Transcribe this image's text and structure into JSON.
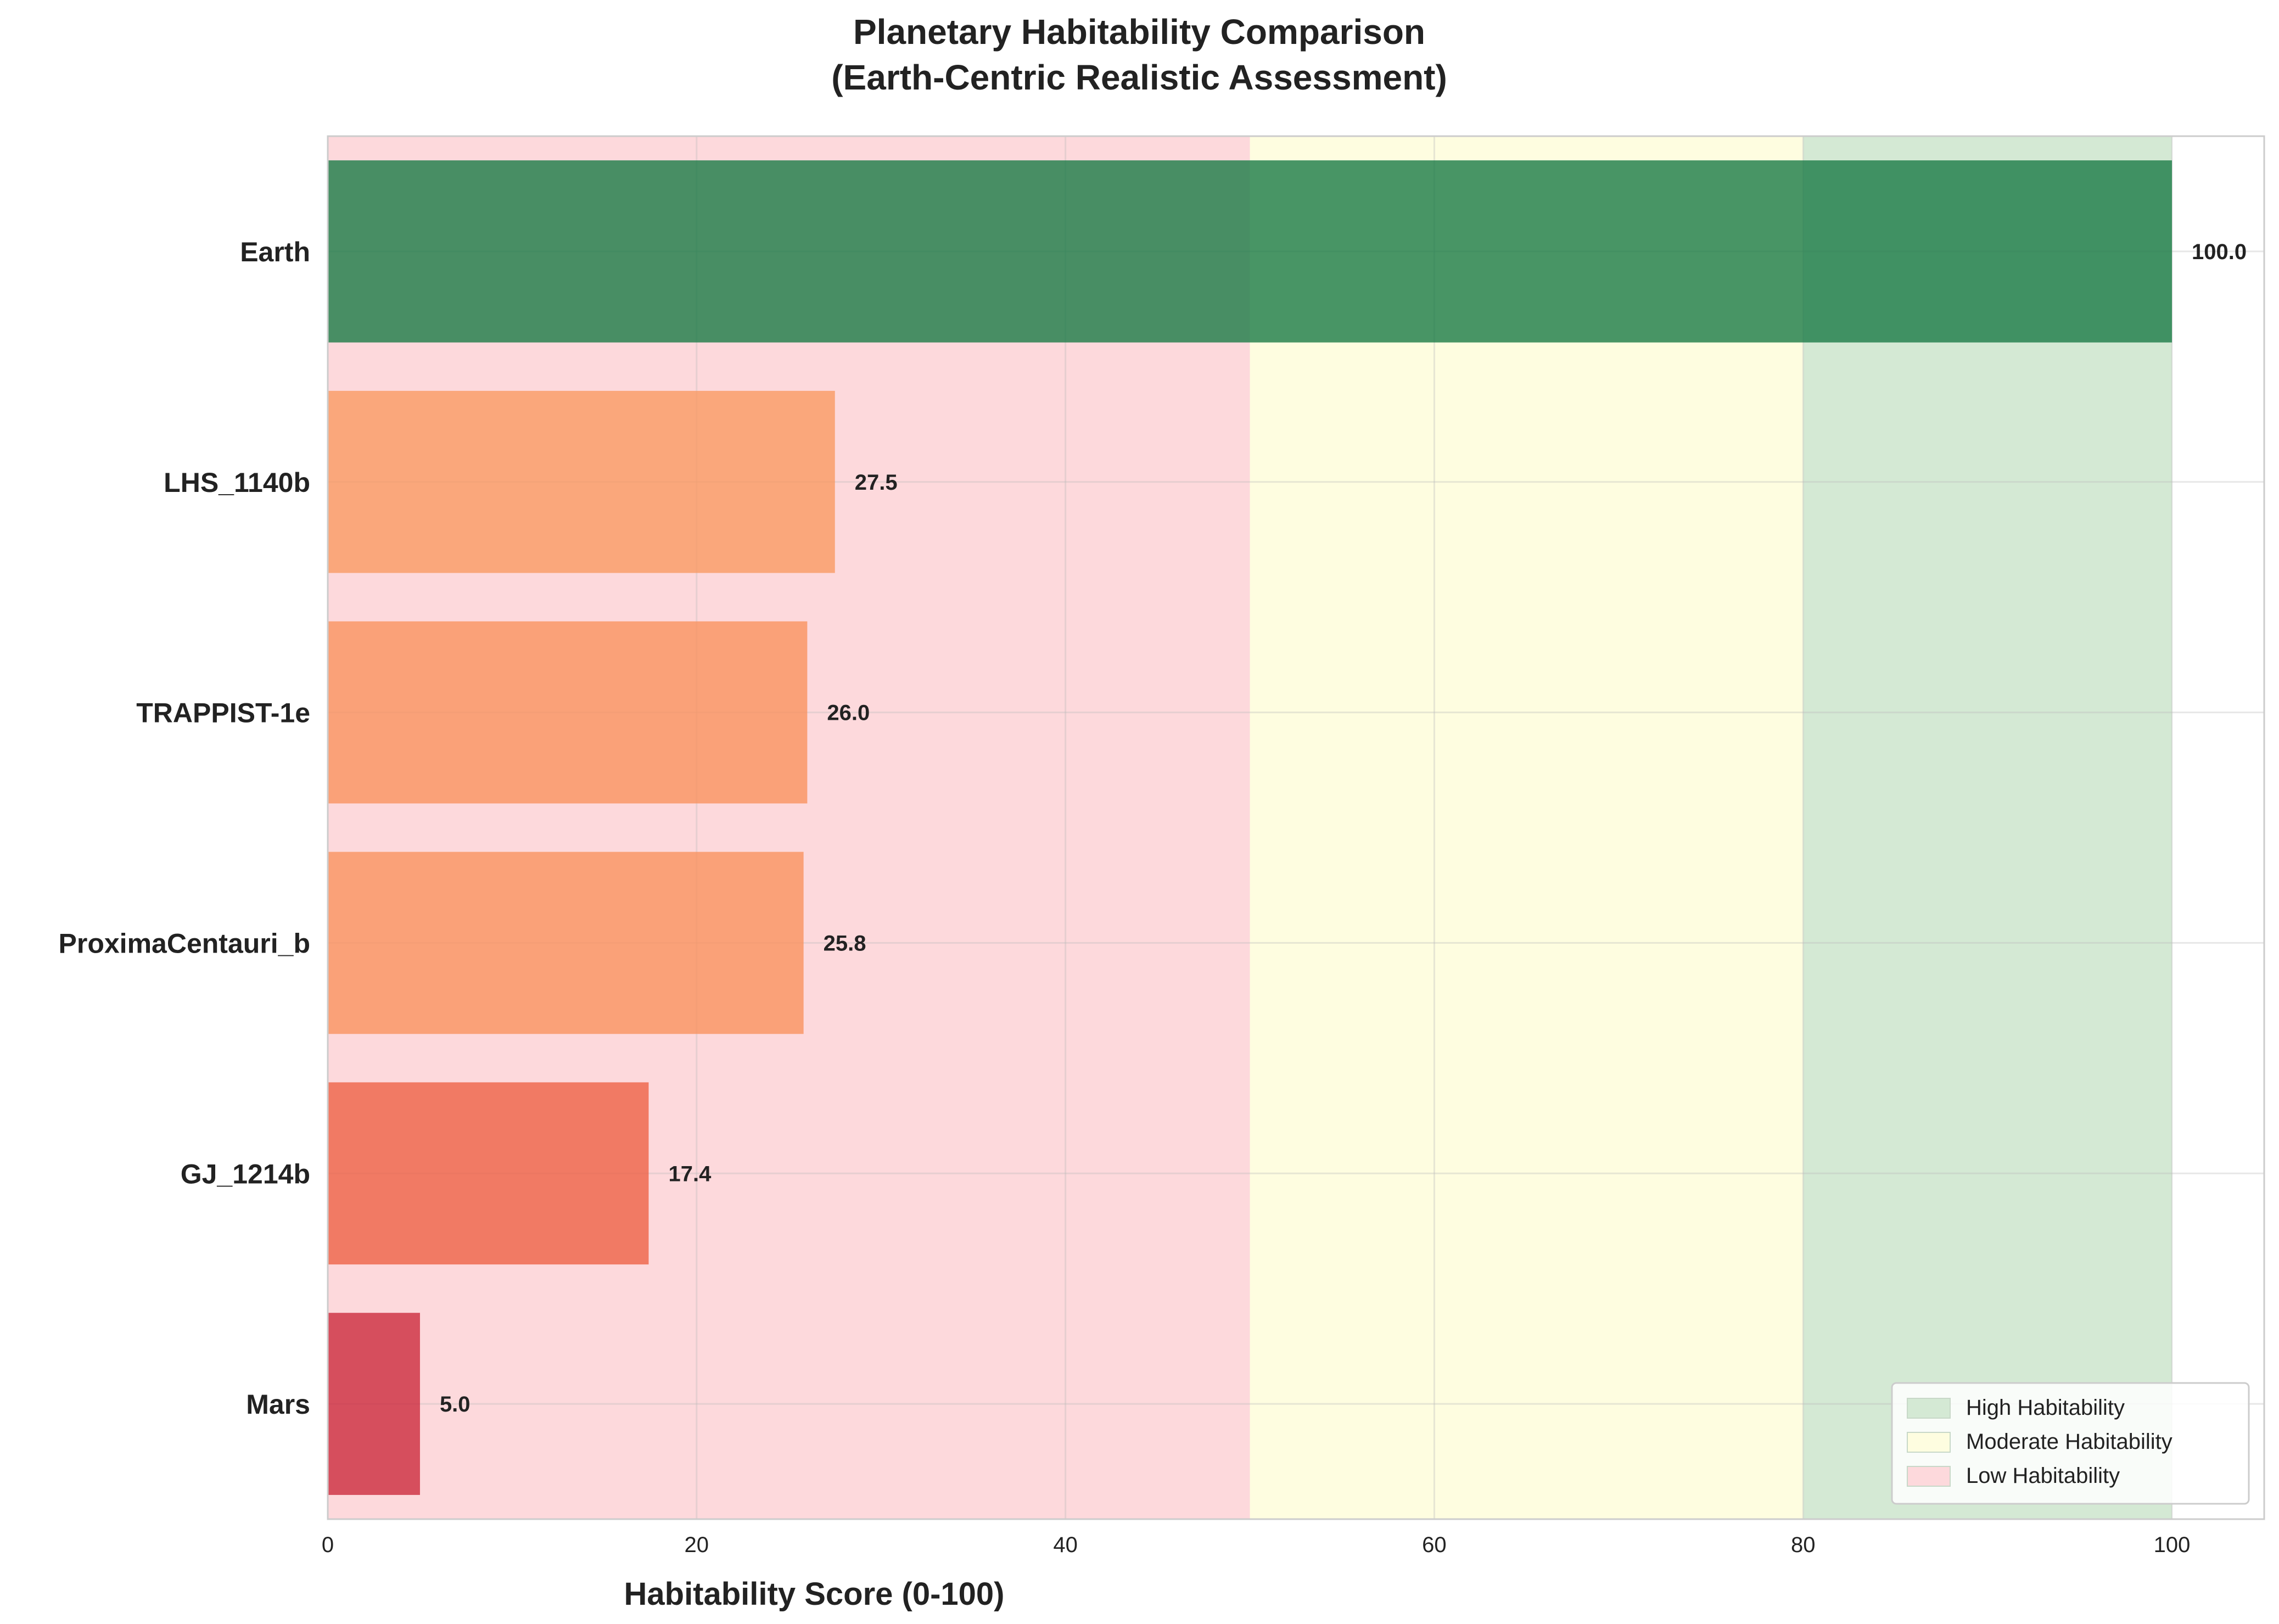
{
  "chart_data": {
    "type": "bar",
    "orientation": "horizontal",
    "title": "Planetary Habitability Comparison",
    "subtitle": "(Earth-Centric Realistic Assessment)",
    "xlabel": "Habitability Score (0-100)",
    "ylabel": "",
    "xlim": [
      0,
      105
    ],
    "xticks": [
      0,
      20,
      40,
      60,
      80,
      100
    ],
    "grid": true,
    "categories": [
      "Earth",
      "LHS_1140b",
      "TRAPPIST-1e",
      "ProximaCentauri_b",
      "GJ_1214b",
      "Mars"
    ],
    "values": [
      100.0,
      27.5,
      26.0,
      25.8,
      17.4,
      5.0
    ],
    "value_labels": [
      "100.0",
      "27.5",
      "26.0",
      "25.8",
      "17.4",
      "5.0"
    ],
    "bar_colors": [
      "#1a7a46",
      "#f99a63",
      "#f9925f",
      "#f9925f",
      "#ee6146",
      "#cc2b3d"
    ],
    "zones": [
      {
        "name": "High Habitability",
        "from": 80,
        "to": 100,
        "color": "#d4e9d4"
      },
      {
        "name": "Moderate Habitability",
        "from": 50,
        "to": 80,
        "color": "#fefde0"
      },
      {
        "name": "Low Habitability",
        "from": 0,
        "to": 50,
        "color": "#fdd9dc"
      }
    ],
    "legend_placement": "bottom-right"
  }
}
